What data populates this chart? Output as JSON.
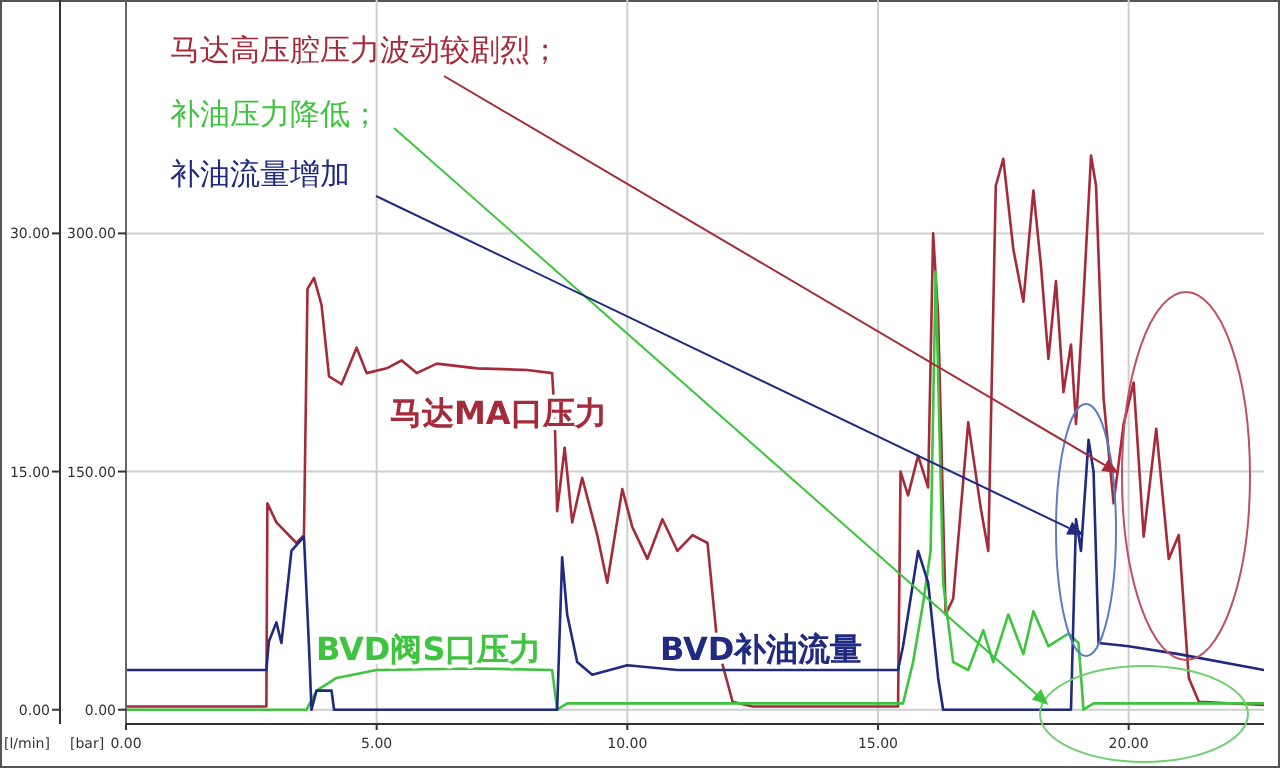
{
  "chart_data": {
    "type": "line",
    "ylabel": "[bar]",
    "y2label": "[l/min]",
    "xlim": [
      0,
      22.7
    ],
    "xticks": [
      {
        "value": 0,
        "label": "0.00"
      },
      {
        "value": 5,
        "label": "5.00"
      },
      {
        "value": 10,
        "label": "10.00"
      },
      {
        "value": 15,
        "label": "15.00"
      },
      {
        "value": 20,
        "label": "20.00"
      }
    ],
    "ylim": [
      -9,
      447
    ],
    "yticks": [
      {
        "value": 0,
        "label": "0.00"
      },
      {
        "value": 150,
        "label": "150.00"
      },
      {
        "value": 300,
        "label": "300.00"
      }
    ],
    "y2lim": [
      -0.9,
      44.7
    ],
    "y2ticks": [
      {
        "value": 0,
        "label": "0.00"
      },
      {
        "value": 15,
        "label": "15.00"
      },
      {
        "value": 30,
        "label": "30.00"
      }
    ],
    "grid": true,
    "series": [
      {
        "name": "马达MA口压力",
        "color": "#a52a3a",
        "x": [
          0,
          2.8,
          2.82,
          3.0,
          3.4,
          3.55,
          3.62,
          3.75,
          3.9,
          4.05,
          4.3,
          4.6,
          4.8,
          5.2,
          5.5,
          5.8,
          6.2,
          7,
          8,
          8.5,
          8.55,
          8.6,
          8.75,
          8.9,
          9.1,
          9.4,
          9.6,
          9.9,
          10.1,
          10.4,
          10.7,
          11.0,
          11.3,
          11.6,
          11.8,
          12.1,
          12.5,
          15.4,
          15.45,
          15.6,
          15.8,
          16.0,
          16.1,
          16.2,
          16.35,
          16.5,
          16.8,
          17.05,
          17.2,
          17.35,
          17.5,
          17.7,
          17.9,
          18.1,
          18.25,
          18.4,
          18.55,
          18.7,
          18.85,
          18.95,
          19.1,
          19.25,
          19.35,
          19.5,
          19.7,
          19.9,
          20.1,
          20.3,
          20.55,
          20.8,
          21.0,
          21.2,
          21.4,
          22.7
        ],
        "values": [
          2,
          2,
          130,
          118,
          105,
          110,
          265,
          272,
          255,
          210,
          205,
          228,
          212,
          215,
          220,
          212,
          218,
          215,
          214,
          212,
          185,
          125,
          165,
          118,
          146,
          110,
          80,
          139,
          115,
          95,
          120,
          100,
          110,
          105,
          40,
          5,
          2,
          2,
          150,
          135,
          160,
          140,
          300,
          248,
          60,
          70,
          181,
          127,
          100,
          330,
          347,
          290,
          257,
          327,
          280,
          221,
          270,
          200,
          230,
          180,
          260,
          349,
          330,
          196,
          130,
          180,
          206,
          109,
          177,
          95,
          110,
          20,
          5,
          3
        ]
      },
      {
        "name": "BVD阀S口压力",
        "color": "#3ec43e",
        "x": [
          0,
          3.6,
          3.8,
          4.2,
          5,
          7,
          8.5,
          8.6,
          8.8,
          15.5,
          15.7,
          15.9,
          16.05,
          16.15,
          16.3,
          16.5,
          16.8,
          17.1,
          17.3,
          17.6,
          17.9,
          18.1,
          18.4,
          18.8,
          19.0,
          19.1,
          19.3,
          22.7
        ],
        "values": [
          0,
          0,
          12,
          20,
          25,
          26,
          25,
          0,
          4,
          4,
          30,
          67,
          100,
          276,
          80,
          30,
          25,
          50,
          30,
          60,
          35,
          62,
          40,
          48,
          42,
          0,
          4,
          4
        ]
      },
      {
        "name": "BVD补油流量",
        "color": "#1f2a80",
        "axis": "y2",
        "x": [
          0,
          2.8,
          2.85,
          3.0,
          3.1,
          3.3,
          3.55,
          3.65,
          3.7,
          3.8,
          4.1,
          4.15,
          8.6,
          8.7,
          8.8,
          9.0,
          9.3,
          10,
          11,
          15.4,
          15.5,
          15.8,
          16.0,
          16.2,
          16.3,
          18.85,
          18.95,
          19.05,
          19.2,
          19.3,
          19.4,
          20,
          21,
          22.7
        ],
        "values": [
          2.5,
          2.5,
          4.3,
          5.5,
          4.2,
          10,
          10.9,
          4,
          0,
          1.2,
          1.2,
          0,
          0,
          9.6,
          6,
          3,
          2.2,
          2.8,
          2.5,
          2.5,
          4,
          10,
          8,
          2,
          0,
          0,
          12,
          10,
          17,
          15,
          4.2,
          4,
          3.5,
          2.5
        ]
      }
    ],
    "annotations": [
      {
        "text": "马达高压腔压力波动较剧烈；",
        "x": 19.8,
        "y": 149
      },
      {
        "text": "补油压力降低；",
        "x": 18.4,
        "y": 3
      },
      {
        "text": "补油流量增加",
        "x": 19.1,
        "y": 110
      }
    ]
  }
}
